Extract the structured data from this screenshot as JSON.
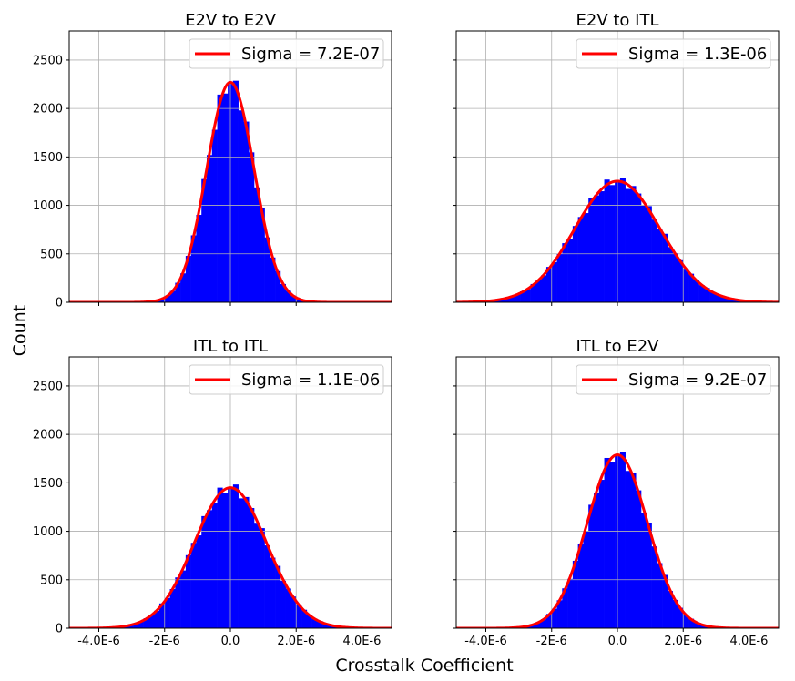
{
  "figure": {
    "ylabel": "Count",
    "xlabel": "Crosstalk Coefficient"
  },
  "colors": {
    "bars": "#0000ff",
    "fit": "#ff0000",
    "grid": "#b0b0b0"
  },
  "chart_data": [
    {
      "type": "histogram",
      "title": "E2V to E2V",
      "legend": "Sigma = 7.2E-07",
      "sigma": 7.2e-07,
      "peak": 2270,
      "center": 0,
      "bin_width": 1.6e-07,
      "xlim": [
        -4.9e-06,
        4.9e-06
      ],
      "ylim": [
        0,
        2800
      ],
      "yticks": [
        0,
        500,
        1000,
        1500,
        2000,
        2500
      ],
      "xticks": [
        -4e-06,
        -2e-06,
        0,
        2e-06,
        4e-06
      ],
      "xticklabels": [
        "",
        "",
        "",
        "",
        ""
      ],
      "yticklabels": [
        "0",
        "500",
        "1000",
        "1500",
        "2000",
        "2500"
      ]
    },
    {
      "type": "histogram",
      "title": "E2V to ITL",
      "legend": "Sigma = 1.3E-06",
      "sigma": 1.3e-06,
      "peak": 1250,
      "center": 0,
      "bin_width": 1.6e-07,
      "xlim": [
        -4.9e-06,
        4.9e-06
      ],
      "ylim": [
        0,
        2800
      ],
      "yticks": [
        0,
        500,
        1000,
        1500,
        2000,
        2500
      ],
      "xticks": [
        -4e-06,
        -2e-06,
        0,
        2e-06,
        4e-06
      ],
      "xticklabels": [
        "",
        "",
        "",
        "",
        ""
      ],
      "yticklabels": [
        "",
        "",
        "",
        "",
        "",
        ""
      ]
    },
    {
      "type": "histogram",
      "title": "ITL to ITL",
      "legend": "Sigma = 1.1E-06",
      "sigma": 1.1e-06,
      "peak": 1450,
      "center": 0,
      "bin_width": 1.6e-07,
      "xlim": [
        -4.9e-06,
        4.9e-06
      ],
      "ylim": [
        0,
        2800
      ],
      "yticks": [
        0,
        500,
        1000,
        1500,
        2000,
        2500
      ],
      "xticks": [
        -4e-06,
        -2e-06,
        0,
        2e-06,
        4e-06
      ],
      "xticklabels": [
        "-4.0E-6",
        "-2E-6",
        "0.0",
        "2.0E-6",
        "4.0E-6"
      ],
      "yticklabels": [
        "0",
        "500",
        "1000",
        "1500",
        "2000",
        "2500"
      ]
    },
    {
      "type": "histogram",
      "title": "ITL to E2V",
      "legend": "Sigma = 9.2E-07",
      "sigma": 9.2e-07,
      "peak": 1790,
      "center": 0,
      "bin_width": 1.6e-07,
      "xlim": [
        -4.9e-06,
        4.9e-06
      ],
      "ylim": [
        0,
        2800
      ],
      "yticks": [
        0,
        500,
        1000,
        1500,
        2000,
        2500
      ],
      "xticks": [
        -4e-06,
        -2e-06,
        0,
        2e-06,
        4e-06
      ],
      "xticklabels": [
        "-4.0E-6",
        "-2E-6",
        "0.0",
        "2.0E-6",
        "4.0E-6"
      ],
      "yticklabels": [
        "",
        "",
        "",
        "",
        "",
        ""
      ]
    }
  ]
}
